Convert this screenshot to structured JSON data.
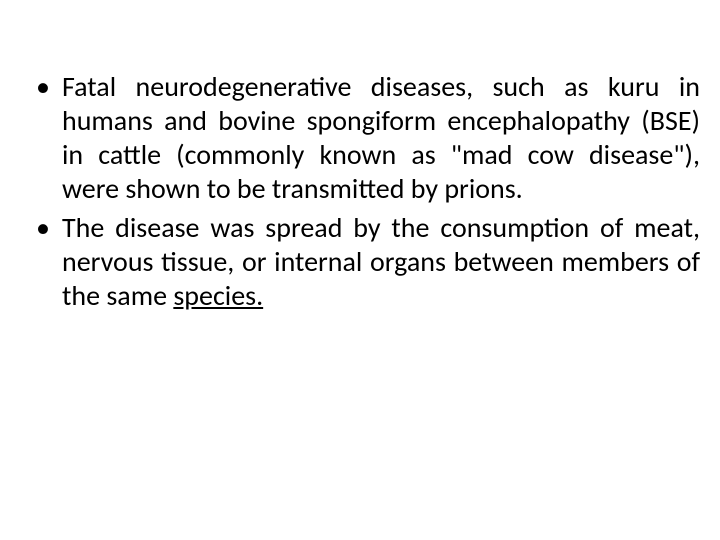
{
  "slide": {
    "background_color": "#ffffff",
    "text_color": "#000000",
    "font_family": "Calibri",
    "font_size_pt": 28,
    "bullet_char": "•",
    "text_align": "justify",
    "bullets": [
      {
        "text": "Fatal neurodegenerative diseases, such as kuru in humans and bovine spongiform encephalopathy (BSE) in cattle (commonly known as \"mad cow disease\"), were shown to be transmitted by prions."
      },
      {
        "text_prefix": "The disease was spread by the consumption of meat, nervous tissue, or internal organs between members of the same ",
        "link_text": "species.",
        "link_style": "underline"
      }
    ]
  }
}
